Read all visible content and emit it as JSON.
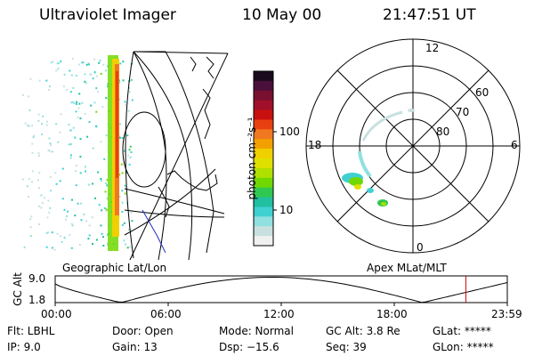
{
  "header": {
    "instrument": "Ultraviolet Imager",
    "date": "10 May 00",
    "time": "21:47:51 UT"
  },
  "colorbar": {
    "unit_label": "photon cm⁻²s⁻¹",
    "ticks": [
      "100",
      "10"
    ],
    "colors": [
      "#1a0a1e",
      "#4b0f3b",
      "#7a1030",
      "#a0102a",
      "#c81010",
      "#e84010",
      "#f07820",
      "#f2a000",
      "#f0d000",
      "#e0e000",
      "#b0e000",
      "#70d800",
      "#30c850",
      "#20c0a0",
      "#40d0d0",
      "#90e0e0",
      "#c8e0e0",
      "#f0f0f0"
    ]
  },
  "polar": {
    "mlt_labels": {
      "top": "12",
      "bottom": "0",
      "left": "18",
      "right": "6"
    },
    "lat_labels": [
      "60",
      "70",
      "80"
    ]
  },
  "panel_labels": {
    "left": "Geographic Lat/Lon",
    "right": "Apex MLat/MLT"
  },
  "orbit_plot": {
    "ylabel": "GC Alt",
    "y_ticks": [
      "9.0",
      "1.8"
    ],
    "x_ticks": [
      "00:00",
      "06:00",
      "12:00",
      "18:00",
      "23:59"
    ],
    "marker_hour": 21.8,
    "marker_color": "#cc0000"
  },
  "status": {
    "flt": "Flt: LBHL",
    "ip": "IP:  9.0",
    "door": "Door: Open",
    "gain": "Gain: 13",
    "mode": "Mode: Normal",
    "dsp": "Dsp:  −15.6",
    "gcalt": "GC Alt: 3.8 Re",
    "seq": "Seq: 39",
    "glat": "GLat: *****",
    "glon": "GLon: *****"
  }
}
